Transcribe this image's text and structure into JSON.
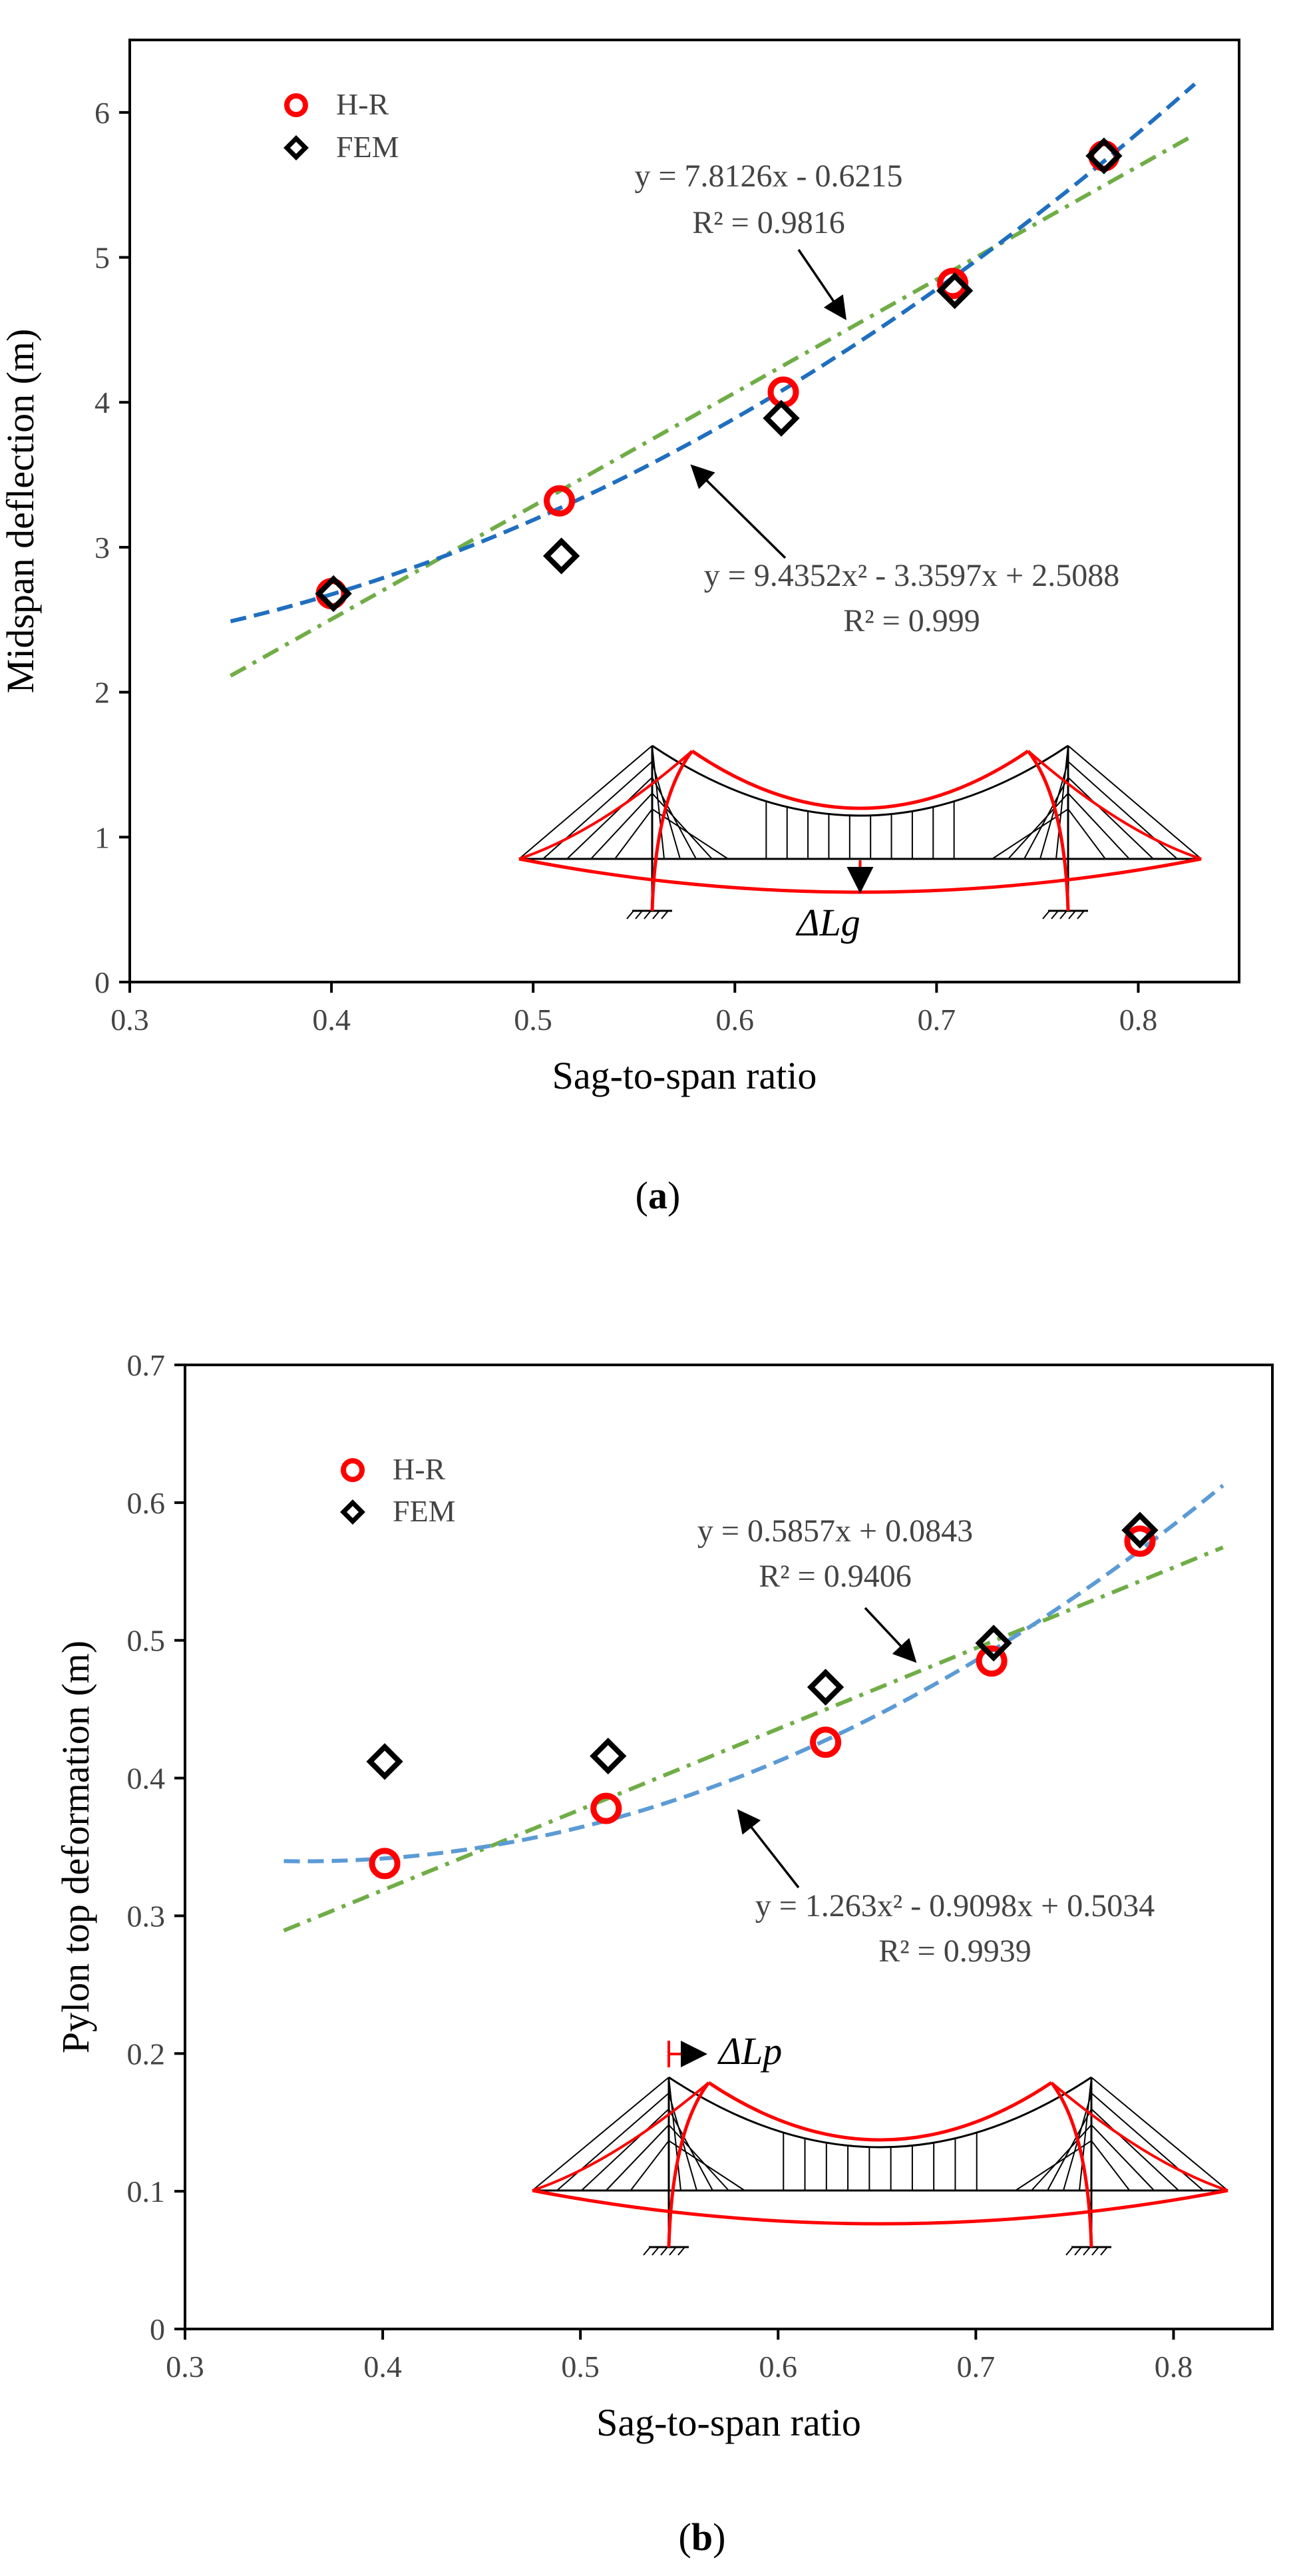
{
  "chart_data": [
    {
      "id": "a",
      "type": "scatter",
      "caption_prefix": "(",
      "caption_letter": "a",
      "caption_suffix": ")",
      "xlabel": "Sag-to-span ratio",
      "ylabel": "Midspan deflection (m)",
      "xlim": [
        0.3,
        0.85
      ],
      "ylim": [
        0,
        6.5
      ],
      "xticks": [
        0.3,
        0.4,
        0.5,
        0.6,
        0.7,
        0.8
      ],
      "yticks": [
        0,
        1,
        2,
        3,
        4,
        5,
        6
      ],
      "xtick_labels": [
        "0.3",
        "0.4",
        "0.5",
        "0.6",
        "0.7",
        "0.8"
      ],
      "ytick_labels": [
        "0",
        "1",
        "2",
        "3",
        "4",
        "5",
        "6"
      ],
      "legend": [
        "H-R",
        "FEM"
      ],
      "series": [
        {
          "name": "H-R",
          "marker": "circle",
          "color": "#ff0000",
          "x": [
            0.4,
            0.513,
            0.624,
            0.708,
            0.783
          ],
          "y": [
            2.68,
            3.32,
            4.07,
            4.82,
            5.7
          ]
        },
        {
          "name": "FEM",
          "marker": "diamond",
          "color": "#000000",
          "x": [
            0.401,
            0.514,
            0.623,
            0.709,
            0.783
          ],
          "y": [
            2.68,
            2.94,
            3.89,
            4.77,
            5.7
          ]
        }
      ],
      "fits": [
        {
          "kind": "linear",
          "color": "#70ad47",
          "style": "dashdot",
          "coef": [
            7.8126,
            -0.6215
          ],
          "x_range": [
            0.35,
            0.828
          ],
          "equation": "y = 7.8126x - 0.6215",
          "r2": "R² = 0.9816"
        },
        {
          "kind": "quadratic",
          "color": "#1f6fc0",
          "style": "dashed",
          "coef": [
            9.4352,
            -3.3597,
            2.5088
          ],
          "x_range": [
            0.35,
            0.828
          ],
          "equation": "y = 9.4352x² - 3.3597x + 2.5088",
          "r2": "R² = 0.999"
        }
      ],
      "inset_label": "ΔLg"
    },
    {
      "id": "b",
      "type": "scatter",
      "caption_prefix": "(",
      "caption_letter": "b",
      "caption_suffix": ")",
      "xlabel": "Sag-to-span ratio",
      "ylabel": "Pylon top deformation (m)",
      "xlim": [
        0.3,
        0.85
      ],
      "ylim": [
        0,
        0.7
      ],
      "xticks": [
        0.3,
        0.4,
        0.5,
        0.6,
        0.7,
        0.8
      ],
      "yticks": [
        0,
        0.1,
        0.2,
        0.3,
        0.4,
        0.5,
        0.6,
        0.7
      ],
      "xtick_labels": [
        "0.3",
        "0.4",
        "0.5",
        "0.6",
        "0.7",
        "0.8"
      ],
      "ytick_labels": [
        "0",
        "0.1",
        "0.2",
        "0.3",
        "0.4",
        "0.5",
        "0.6",
        "0.7"
      ],
      "legend": [
        "H-R",
        "FEM"
      ],
      "series": [
        {
          "name": "H-R",
          "marker": "circle",
          "color": "#ff0000",
          "x": [
            0.401,
            0.513,
            0.624,
            0.708,
            0.783
          ],
          "y": [
            0.338,
            0.378,
            0.426,
            0.485,
            0.572
          ]
        },
        {
          "name": "FEM",
          "marker": "diamond",
          "color": "#000000",
          "x": [
            0.401,
            0.514,
            0.624,
            0.709,
            0.783
          ],
          "y": [
            0.412,
            0.416,
            0.466,
            0.498,
            0.58
          ]
        }
      ],
      "fits": [
        {
          "kind": "linear",
          "color": "#70ad47",
          "style": "dashdot",
          "coef": [
            0.5857,
            0.0843
          ],
          "x_range": [
            0.35,
            0.825
          ],
          "equation": "y = 0.5857x + 0.0843",
          "r2": "R² = 0.9406"
        },
        {
          "kind": "quadratic",
          "color": "#5b9bd5",
          "style": "dashed",
          "coef": [
            1.263,
            -0.9098,
            0.5034
          ],
          "x_range": [
            0.35,
            0.825
          ],
          "equation": "y = 1.263x² - 0.9098x + 0.5034",
          "r2": "R² = 0.9939"
        }
      ],
      "inset_label": "ΔLp"
    }
  ]
}
